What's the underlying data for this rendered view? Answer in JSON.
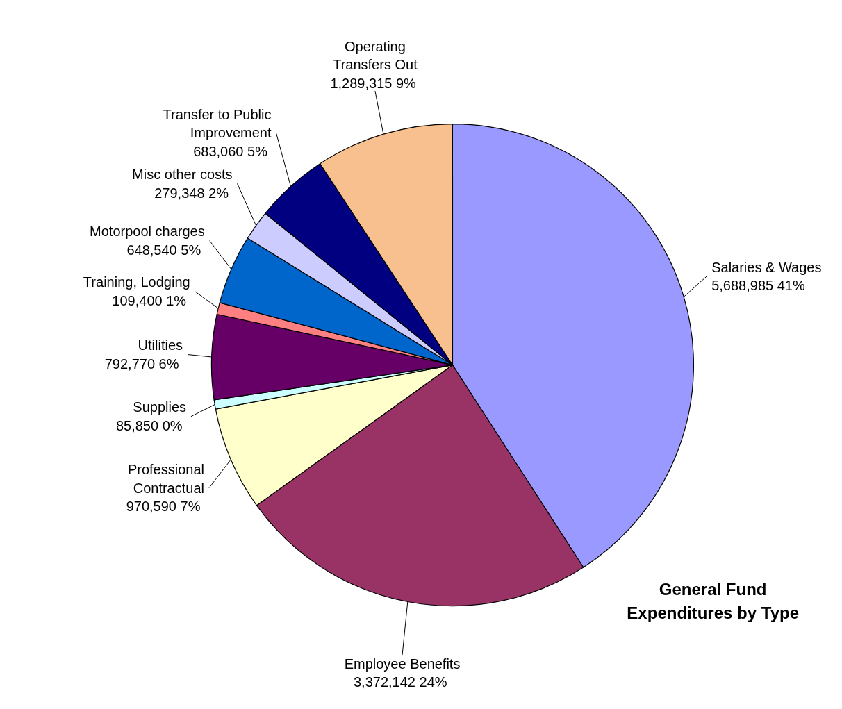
{
  "chart_data": {
    "type": "pie",
    "title": "General Fund\nExpenditures by Type",
    "categories": [
      "Salaries & Wages",
      "Employee Benefits",
      "Professional\nContractual",
      "Supplies",
      "Utilities",
      "Training, Lodging",
      "Motorpool charges",
      "Misc other costs",
      "Transfer to Public\nImprovement",
      "Operating\nTransfers Out"
    ],
    "values": [
      5688985,
      3372142,
      970590,
      85850,
      792770,
      109400,
      648540,
      279348,
      683060,
      1289315
    ],
    "value_labels": [
      "5,688,985  41%",
      "3,372,142  24%",
      "970,590  7%",
      "85,850  0%",
      "792,770  6%",
      "109,400  1%",
      "648,540  5%",
      "279,348  2%",
      "683,060  5%",
      "1,289,315  9%"
    ],
    "colors": [
      "#9999ff",
      "#993366",
      "#ffffcc",
      "#ccffff",
      "#660066",
      "#ff8080",
      "#0066cc",
      "#ccccff",
      "#000080",
      "#f9c08f"
    ]
  }
}
